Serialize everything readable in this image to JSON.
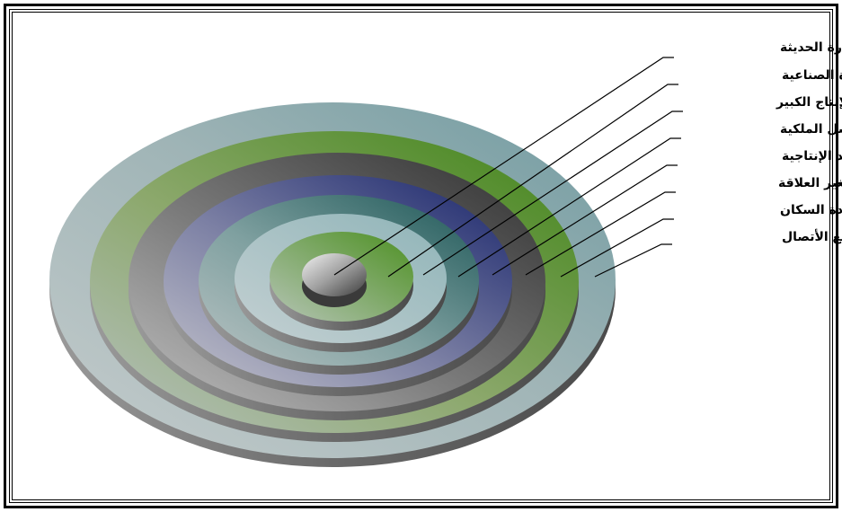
{
  "colors": {
    "outer_ring": "#7da5a8",
    "green_ring": "#4a8a1a",
    "dark_ring": "#404040",
    "navy_ring": "#1c2f6e",
    "teal_ring": "#1f5a5a",
    "pale_ring": "#a8c4c8",
    "core": "#4a4a4a"
  },
  "labels": [
    "الإدارة الحديثة",
    "الثورة الصناعية",
    "الإنتاج الكبير",
    "فصل الملكية",
    "تعقد الإنتاجية",
    "تغير العلاقة",
    "زيادة السكان",
    "توسع الأتصال"
  ]
}
